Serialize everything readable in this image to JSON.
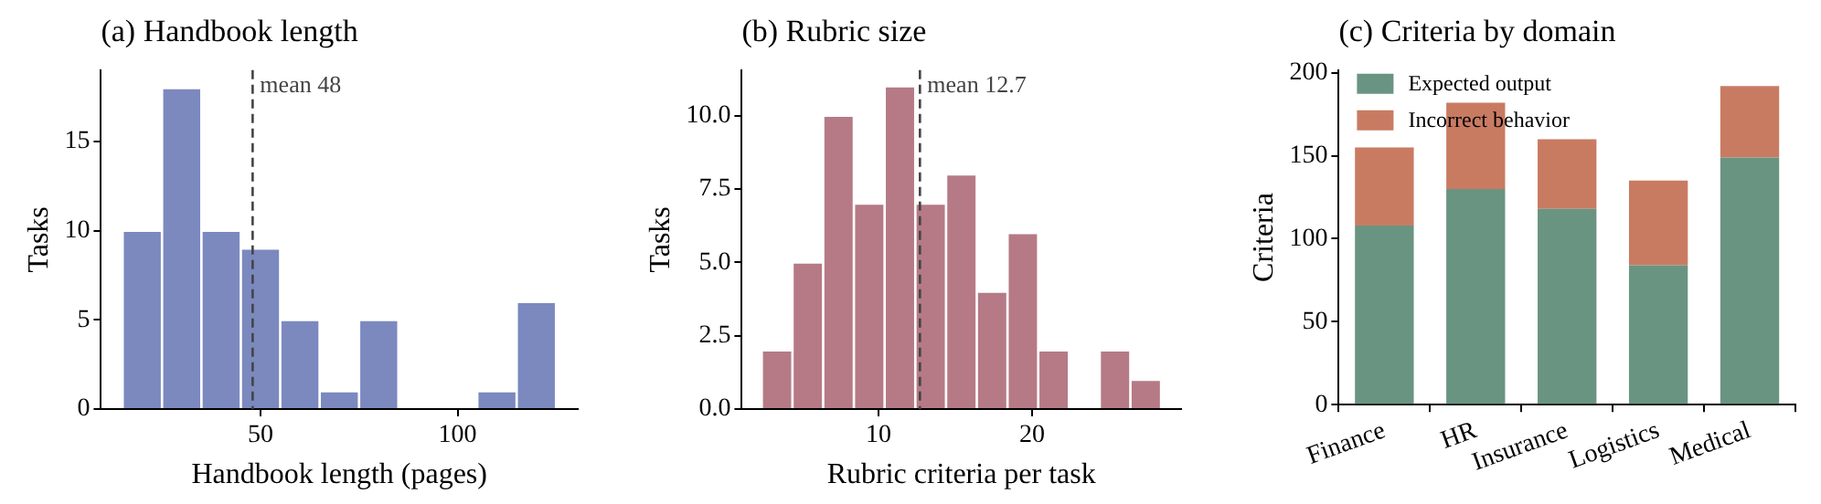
{
  "chart_data": [
    {
      "type": "histogram",
      "title": "(a) Handbook length",
      "xlabel": "Handbook length (pages)",
      "ylabel": "Tasks",
      "bins": [
        15,
        25,
        35,
        45,
        55,
        65,
        75,
        85,
        95,
        105,
        115,
        125
      ],
      "values": [
        10,
        18,
        10,
        9,
        5,
        1,
        5,
        0,
        0,
        1,
        6
      ],
      "color": "#7b89bf",
      "xlim": [
        9.5,
        130.5
      ],
      "xticks": [
        50,
        100
      ],
      "ylim": [
        0,
        19
      ],
      "yticks": [
        0,
        5,
        10,
        15
      ],
      "ref_lines": [
        {
          "axis": "x",
          "value": 48,
          "label": "mean 48",
          "color": "#444444",
          "line_style": "dashed"
        }
      ],
      "grid": false,
      "legend": false
    },
    {
      "type": "histogram",
      "title": "(b) Rubric size",
      "xlabel": "Rubric criteria per task",
      "ylabel": "Tasks",
      "bins": [
        2.4,
        4.4,
        6.4,
        8.4,
        10.4,
        12.4,
        14.4,
        16.4,
        18.4,
        20.4,
        22.4,
        24.4,
        26.4,
        28.4
      ],
      "values": [
        2,
        5,
        10,
        7,
        11,
        7,
        8,
        4,
        6,
        2,
        0,
        2,
        1
      ],
      "color": "#b57a85",
      "xlim": [
        1.1,
        29.7
      ],
      "xticks": [
        10,
        20
      ],
      "ylim": [
        0,
        11.55
      ],
      "yticks": [
        {
          "value": 0,
          "label": "0.0"
        },
        {
          "value": 2.5,
          "label": "2.5"
        },
        {
          "value": 5,
          "label": "5.0"
        },
        {
          "value": 7.5,
          "label": "7.5"
        },
        {
          "value": 10,
          "label": "10.0"
        }
      ],
      "ref_lines": [
        {
          "axis": "x",
          "value": 12.7,
          "label": "mean 12.7",
          "color": "#444444",
          "line_style": "dashed"
        }
      ],
      "grid": false,
      "legend": false
    },
    {
      "type": "bar",
      "stacked": true,
      "title": "(c) Criteria by domain",
      "ylabel": "Criteria",
      "categories": [
        "Finance",
        "HR",
        "Insurance",
        "Logistics",
        "Medical"
      ],
      "series": [
        {
          "name": "Expected output",
          "color": "#6a9482",
          "values": [
            108,
            130,
            118,
            84,
            149
          ]
        },
        {
          "name": "Incorrect behavior",
          "color": "#c97b62",
          "values": [
            47,
            52,
            42,
            51,
            43
          ]
        }
      ],
      "ylim": [
        0,
        201.6
      ],
      "yticks": [
        0,
        50,
        100,
        150,
        200
      ],
      "grid": false,
      "legend": "top left"
    }
  ]
}
